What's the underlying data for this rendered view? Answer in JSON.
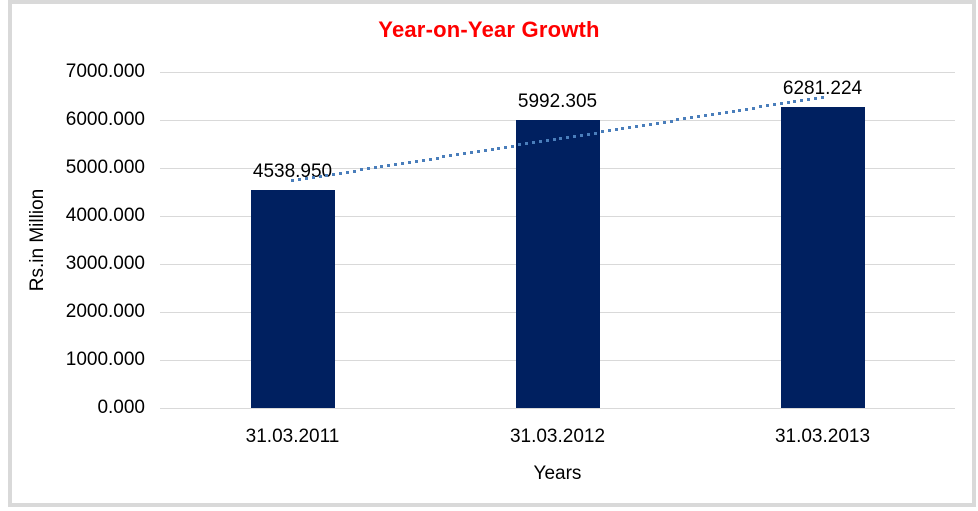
{
  "chart_data": {
    "type": "bar",
    "title": "Year-on-Year Growth",
    "xlabel": "Years",
    "ylabel": "Rs.in Million",
    "categories": [
      "31.03.2011",
      "31.03.2012",
      "31.03.2013"
    ],
    "values": [
      4538.95,
      5992.305,
      6281.224
    ],
    "data_labels": [
      "4538.950",
      "5992.305",
      "6281.224"
    ],
    "ylim": [
      0,
      7000
    ],
    "ytick_step": 1000,
    "ytick_labels": [
      "0.000",
      "1000.000",
      "2000.000",
      "3000.000",
      "4000.000",
      "5000.000",
      "6000.000",
      "7000.000"
    ],
    "grid": true,
    "legend": "none",
    "trendline": {
      "type": "linear",
      "style": "dotted"
    },
    "colors": {
      "bar": "#002060",
      "trendline": "#4a7ebb",
      "title": "#ff0000",
      "grid": "#d9d9d9",
      "frame": "#d9d9d9",
      "text": "#000000"
    }
  }
}
